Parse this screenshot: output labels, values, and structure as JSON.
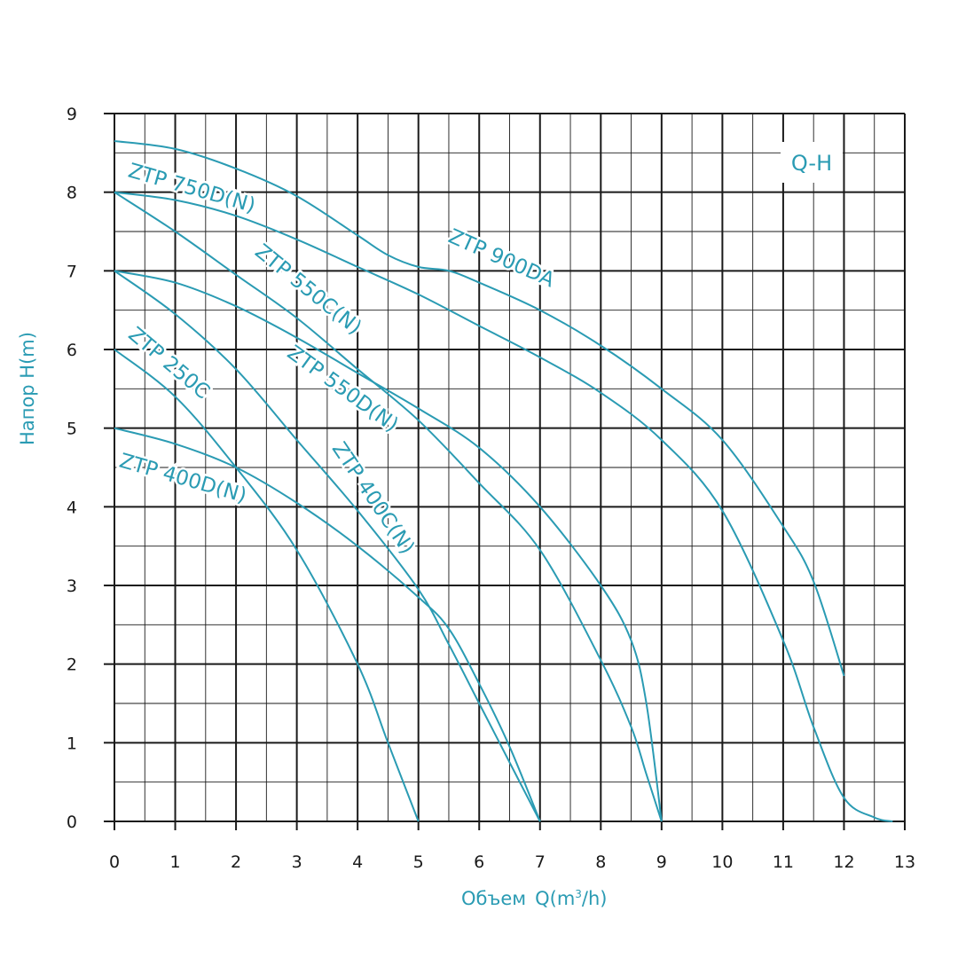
{
  "chart_data": {
    "type": "line",
    "badge": "Q-H",
    "ylabel": "Напор H(m)",
    "xlabel_main": "Объем",
    "xlabel_unit_pre": "Q(m",
    "xlabel_unit_sup": "3",
    "xlabel_unit_post": "/h)",
    "xlim": [
      0,
      13
    ],
    "ylim": [
      0,
      9
    ],
    "x_ticks": [
      "0",
      "1",
      "2",
      "3",
      "4",
      "5",
      "6",
      "7",
      "8",
      "9",
      "10",
      "11",
      "12",
      "13"
    ],
    "y_ticks": [
      "0",
      "1",
      "2",
      "3",
      "4",
      "5",
      "6",
      "7",
      "8",
      "9"
    ],
    "grid": true,
    "colors": {
      "curve": "#2a9bb3",
      "grid": "#1a1a1a"
    },
    "series": [
      {
        "name": "ZTP 750D(N)",
        "x": [
          0,
          1,
          2,
          3,
          4,
          4.5,
          5,
          5.5,
          6,
          7,
          8,
          9,
          10,
          11,
          11.5,
          12
        ],
        "y": [
          8.65,
          8.55,
          8.3,
          7.95,
          7.45,
          7.2,
          7.05,
          7.0,
          6.85,
          6.5,
          6.05,
          5.5,
          4.85,
          3.75,
          3.05,
          1.85
        ]
      },
      {
        "name": "ZTP 900DA",
        "x": [
          0,
          1,
          2,
          3,
          4,
          5,
          6,
          7,
          8,
          9,
          10,
          11,
          11.5,
          12,
          12.5,
          12.8
        ],
        "y": [
          8.0,
          7.9,
          7.7,
          7.4,
          7.05,
          6.7,
          6.3,
          5.9,
          5.45,
          4.85,
          3.95,
          2.3,
          1.2,
          0.3,
          0.05,
          0.0
        ]
      },
      {
        "name": "ZTP 550C(N)",
        "x": [
          0,
          1,
          2,
          3,
          4,
          5,
          6,
          7,
          8,
          8.5,
          8.75,
          9
        ],
        "y": [
          8.0,
          7.5,
          6.95,
          6.4,
          5.75,
          5.1,
          4.3,
          3.45,
          2.05,
          1.2,
          0.6,
          0.0
        ]
      },
      {
        "name": "ZTP 550D(N)",
        "x": [
          0,
          1,
          2,
          3,
          4,
          5,
          6,
          7,
          8,
          8.5,
          8.75,
          9
        ],
        "y": [
          7.0,
          6.85,
          6.55,
          6.15,
          5.7,
          5.25,
          4.75,
          4.0,
          3.0,
          2.3,
          1.5,
          0.0
        ]
      },
      {
        "name": "ZTP 400C(N)",
        "x": [
          0,
          1,
          2,
          3,
          4,
          5,
          5.5,
          6,
          6.5,
          7
        ],
        "y": [
          7.0,
          6.45,
          5.75,
          4.85,
          3.95,
          2.95,
          2.25,
          1.5,
          0.75,
          0.0
        ]
      },
      {
        "name": "ZTP 250C",
        "x": [
          0,
          1,
          2,
          3,
          4,
          4.5,
          5
        ],
        "y": [
          6.0,
          5.4,
          4.5,
          3.45,
          2.0,
          1.0,
          0.0
        ]
      },
      {
        "name": "ZTP 400D(N)",
        "x": [
          0,
          1,
          2,
          3,
          4,
          5,
          5.5,
          6,
          6.5,
          7
        ],
        "y": [
          5.0,
          4.8,
          4.5,
          4.05,
          3.5,
          2.85,
          2.45,
          1.75,
          0.95,
          0.0
        ]
      }
    ]
  }
}
